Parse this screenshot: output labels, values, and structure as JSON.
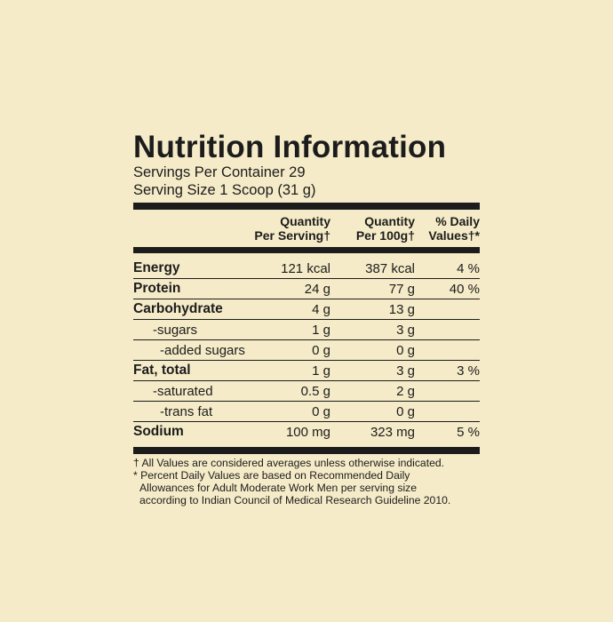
{
  "label": {
    "title": "Nutrition Information",
    "servings_per_container": "Servings Per Container 29",
    "serving_size": "Serving Size 1 Scoop (31 g)"
  },
  "columns": {
    "col2_line1": "Quantity",
    "col2_line2": "Per Serving†",
    "col3_line1": "Quantity",
    "col3_line2": "Per 100g†",
    "col4_line1": "% Daily",
    "col4_line2": "Values†*"
  },
  "rows": [
    {
      "name": "Energy",
      "per_serving": "121 kcal",
      "per_100g": "387 kcal",
      "dv": "4 %"
    },
    {
      "name": "Protein",
      "per_serving": "24 g",
      "per_100g": "77 g",
      "dv": "40 %"
    },
    {
      "name": "Carbohydrate",
      "per_serving": "4 g",
      "per_100g": "13 g",
      "dv": ""
    },
    {
      "name": "-sugars",
      "per_serving": "1 g",
      "per_100g": "3 g",
      "dv": ""
    },
    {
      "name": "-added sugars",
      "per_serving": "0 g",
      "per_100g": "0 g",
      "dv": ""
    },
    {
      "name": "Fat, total",
      "per_serving": "1 g",
      "per_100g": "3 g",
      "dv": "3 %"
    },
    {
      "name": "-saturated",
      "per_serving": "0.5 g",
      "per_100g": "2 g",
      "dv": ""
    },
    {
      "name": "-trans fat",
      "per_serving": "0 g",
      "per_100g": "0 g",
      "dv": ""
    },
    {
      "name": "Sodium",
      "per_serving": "100 mg",
      "per_100g": "323 mg",
      "dv": "5 %"
    }
  ],
  "footnotes": {
    "line1": "† All Values are considered averages unless otherwise indicated.",
    "line2": "* Percent Daily Values are based on Recommended Daily",
    "line3": "Allowances for Adult Moderate Work Men per serving size",
    "line4": "according to Indian Council of Medical Research Guideline 2010."
  },
  "colors": {
    "background": "#f5ebc8",
    "ink": "#1c1c1c"
  }
}
